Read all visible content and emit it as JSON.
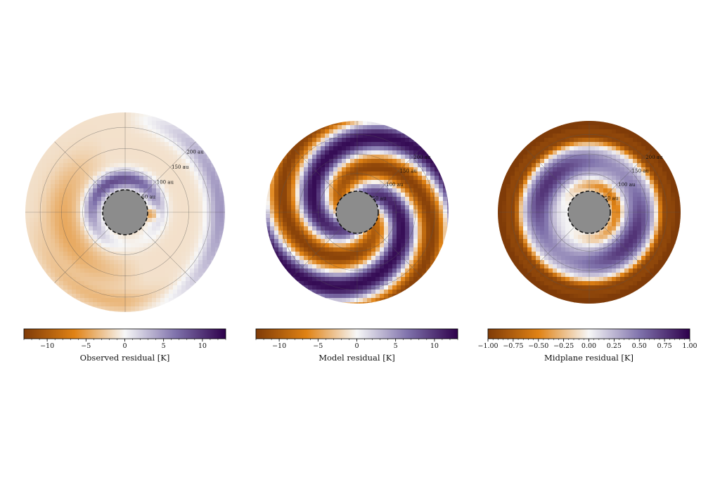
{
  "chart_data": [
    {
      "type": "heatmap",
      "projection": "polar",
      "pattern": "observed",
      "xlabel": "Observed residual [K]",
      "ring_labels": [
        "50 au",
        "100 au",
        "150 au",
        "200 au"
      ],
      "ring_radii_au": [
        50,
        100,
        150,
        200
      ],
      "colorbar": {
        "ticks": [
          -10,
          -5,
          0,
          5,
          10
        ],
        "tick_labels": [
          "−10",
          "−5",
          "0",
          "5",
          "10"
        ],
        "range": [
          -13,
          13
        ]
      },
      "colormap": "PuOr",
      "masked_center_color": "#8c8c8c"
    },
    {
      "type": "heatmap",
      "projection": "polar",
      "pattern": "model",
      "xlabel": "Model residual [K]",
      "ring_labels": [
        "50 au",
        "100 au",
        "150 au",
        "200 au"
      ],
      "ring_radii_au": [
        50,
        100,
        150,
        200
      ],
      "colorbar": {
        "ticks": [
          -10,
          -5,
          0,
          5,
          10
        ],
        "tick_labels": [
          "−10",
          "−5",
          "0",
          "5",
          "10"
        ],
        "range": [
          -13,
          13
        ]
      },
      "colormap": "PuOr",
      "masked_center_color": "#8c8c8c"
    },
    {
      "type": "heatmap",
      "projection": "polar",
      "pattern": "midplane",
      "xlabel": "Midplane residual [K]",
      "ring_labels": [
        "50 au",
        "100 au",
        "150 au",
        "200 au"
      ],
      "ring_radii_au": [
        50,
        100,
        150,
        200
      ],
      "colorbar": {
        "ticks": [
          -1.0,
          -0.75,
          -0.5,
          -0.25,
          0.0,
          0.25,
          0.5,
          0.75,
          1.0
        ],
        "tick_labels": [
          "−1.00",
          "−0.75",
          "−0.50",
          "−0.25",
          "0.00",
          "0.25",
          "0.50",
          "0.75",
          "1.00"
        ],
        "range": [
          -1.0,
          1.0
        ]
      },
      "colormap": "PuOr",
      "masked_center_color": "#8c8c8c"
    }
  ],
  "colors": {
    "neg_end": "#7f3b08",
    "neg_mid": "#e08214",
    "neutral": "#f7f7f7",
    "pos_mid": "#8073ac",
    "pos_end": "#2d004b"
  }
}
